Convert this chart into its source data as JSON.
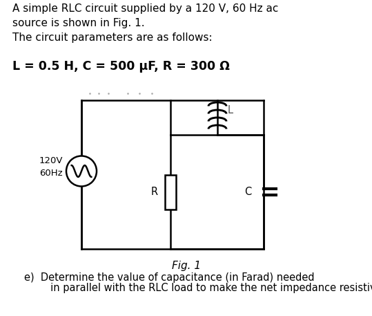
{
  "title_text": "A simple RLC circuit supplied by a 120 V, 60 Hz ac\nsource is shown in Fig. 1.\nThe circuit parameters are as follows:",
  "params_text": "L = 0.5 H, C = 500 μF, R = 300 Ω",
  "fig_label": "Fig. 1",
  "question_line1": "e)  Determine the value of capacitance (in Farad) needed",
  "question_line2": "     in parallel with the RLC load to make the net impedance resistive",
  "source_label": "120V\n60Hz",
  "inductor_label": "L",
  "resistor_label": "R",
  "capacitor_label": "C",
  "bg_color": "#ffffff",
  "line_color": "#000000",
  "font_size_title": 11.0,
  "font_size_params": 12.5,
  "font_size_labels": 10.5,
  "font_size_question": 10.5
}
